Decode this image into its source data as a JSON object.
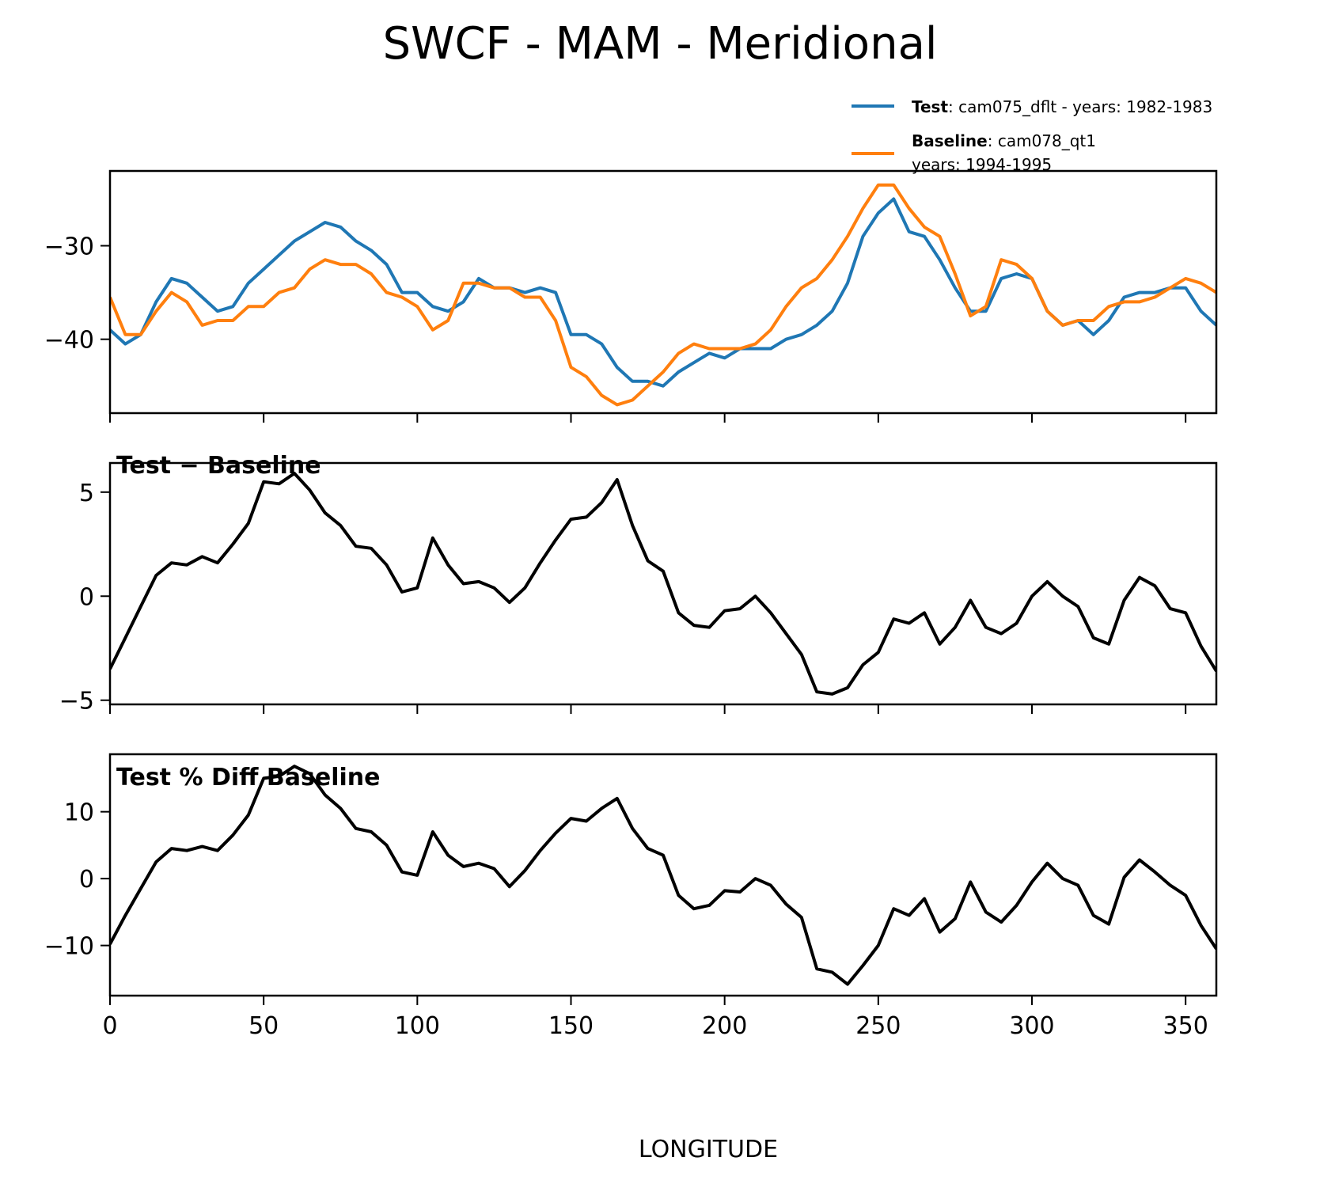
{
  "figure": {
    "title": "SWCF - MAM - Meridional",
    "xlabel": "LONGITUDE"
  },
  "legend": {
    "placement": "upper-right above top panel",
    "entries": [
      {
        "name": "Test",
        "bold": "Test",
        "rest": ": cam075_dflt - years: 1982-1983",
        "line2": "",
        "color": "#1f77b4"
      },
      {
        "name": "Baseline",
        "bold": "Baseline",
        "rest": ": cam078_qt1",
        "line2": "years: 1994-1995",
        "color": "#ff7f0e"
      }
    ]
  },
  "chart_data": [
    {
      "type": "line",
      "panel": "top",
      "title": "",
      "xlabel": "",
      "ylabel": "",
      "xlim": [
        0,
        360
      ],
      "ylim": [
        -47.9,
        -22.0
      ],
      "xticks": [
        0,
        50,
        100,
        150,
        200,
        250,
        300,
        350
      ],
      "xtick_labels_visible": false,
      "yticks": [
        -30,
        -40
      ],
      "ytick_labels": [
        "−30",
        "−40"
      ],
      "grid": false,
      "x": [
        0,
        5,
        10,
        15,
        20,
        25,
        30,
        35,
        40,
        45,
        50,
        55,
        60,
        65,
        70,
        75,
        80,
        85,
        90,
        95,
        100,
        105,
        110,
        115,
        120,
        125,
        130,
        135,
        140,
        145,
        150,
        155,
        160,
        165,
        170,
        175,
        180,
        185,
        190,
        195,
        200,
        205,
        210,
        215,
        220,
        225,
        230,
        235,
        240,
        245,
        250,
        255,
        260,
        265,
        270,
        275,
        280,
        285,
        290,
        295,
        300,
        305,
        310,
        315,
        320,
        325,
        330,
        335,
        340,
        345,
        350,
        355,
        360
      ],
      "series": [
        {
          "name": "Test",
          "color": "#1f77b4",
          "values": [
            -39,
            -40.5,
            -39.5,
            -36,
            -33.5,
            -34,
            -35.5,
            -37,
            -36.5,
            -34,
            -32.5,
            -31,
            -29.5,
            -28.5,
            -27.5,
            -28,
            -29.5,
            -30.5,
            -32,
            -35,
            -35,
            -36.5,
            -37,
            -36,
            -33.5,
            -34.5,
            -34.5,
            -35,
            -34.5,
            -35,
            -39.5,
            -39.5,
            -40.5,
            -43,
            -44.5,
            -44.5,
            -45,
            -43.5,
            -42.5,
            -41.5,
            -42,
            -41,
            -41,
            -41,
            -40,
            -39.5,
            -38.5,
            -37,
            -34,
            -29,
            -26.5,
            -25,
            -28.5,
            -29,
            -31.5,
            -34.5,
            -37,
            -37,
            -33.5,
            -33,
            -33.5,
            -37,
            -38.5,
            -38,
            -39.5,
            -38,
            -35.5,
            -35,
            -35,
            -34.5,
            -34.5,
            -37,
            -38.5
          ]
        },
        {
          "name": "Baseline",
          "color": "#ff7f0e",
          "values": [
            -35.5,
            -39.5,
            -39.5,
            -37,
            -35,
            -36,
            -38.5,
            -38,
            -38,
            -36.5,
            -36.5,
            -35,
            -34.5,
            -32.5,
            -31.5,
            -32,
            -32,
            -33,
            -35,
            -35.5,
            -36.5,
            -39,
            -38,
            -34,
            -34,
            -34.5,
            -34.5,
            -35.5,
            -35.5,
            -38,
            -43,
            -44,
            -46,
            -47,
            -46.5,
            -45,
            -43.5,
            -41.5,
            -40.5,
            -41,
            -41,
            -41,
            -40.5,
            -39,
            -36.5,
            -34.5,
            -33.5,
            -31.5,
            -29,
            -26,
            -23.5,
            -23.5,
            -26,
            -28,
            -29,
            -33,
            -37.5,
            -36.5,
            -31.5,
            -32,
            -33.5,
            -37,
            -38.5,
            -38,
            -38,
            -36.5,
            -36,
            -36,
            -35.5,
            -34.5,
            -33.5,
            -34,
            -35
          ]
        }
      ]
    },
    {
      "type": "line",
      "panel": "middle",
      "title": "Test − Baseline",
      "xlim": [
        0,
        360
      ],
      "ylim": [
        -5.2,
        6.4
      ],
      "xticks": [
        0,
        50,
        100,
        150,
        200,
        250,
        300,
        350
      ],
      "xtick_labels_visible": false,
      "yticks": [
        5,
        0,
        -5
      ],
      "ytick_labels": [
        "5",
        "0",
        "−5"
      ],
      "grid": false,
      "x": [
        0,
        5,
        10,
        15,
        20,
        25,
        30,
        35,
        40,
        45,
        50,
        55,
        60,
        65,
        70,
        75,
        80,
        85,
        90,
        95,
        100,
        105,
        110,
        115,
        120,
        125,
        130,
        135,
        140,
        145,
        150,
        155,
        160,
        165,
        170,
        175,
        180,
        185,
        190,
        195,
        200,
        205,
        210,
        215,
        220,
        225,
        230,
        235,
        240,
        245,
        250,
        255,
        260,
        265,
        270,
        275,
        280,
        285,
        290,
        295,
        300,
        305,
        310,
        315,
        320,
        325,
        330,
        335,
        340,
        345,
        350,
        355,
        360
      ],
      "series": [
        {
          "name": "Test − Baseline",
          "color": "#000000",
          "values": [
            -3.5,
            -2,
            -0.5,
            1,
            1.6,
            1.5,
            1.9,
            1.6,
            2.5,
            3.5,
            5.5,
            5.4,
            5.9,
            5.1,
            4,
            3.4,
            2.4,
            2.3,
            1.5,
            0.2,
            0.4,
            2.8,
            1.5,
            0.6,
            0.7,
            0.4,
            -0.3,
            0.4,
            1.6,
            2.7,
            3.7,
            3.8,
            4.5,
            5.6,
            3.4,
            1.7,
            1.2,
            -0.8,
            -1.4,
            -1.5,
            -0.7,
            -0.6,
            0,
            -0.8,
            -1.8,
            -2.8,
            -4.6,
            -4.7,
            -4.4,
            -3.3,
            -2.7,
            -1.1,
            -1.3,
            -0.8,
            -2.3,
            -1.5,
            -0.2,
            -1.5,
            -1.8,
            -1.3,
            0,
            0.7,
            0,
            -0.5,
            -2,
            -2.3,
            -0.2,
            0.9,
            0.5,
            -0.6,
            -0.8,
            -2.4,
            -3.6
          ]
        }
      ]
    },
    {
      "type": "line",
      "panel": "bottom",
      "title": "Test % Diff Baseline",
      "xlabel": "LONGITUDE",
      "xlim": [
        0,
        360
      ],
      "ylim": [
        -17.5,
        18.6
      ],
      "xticks": [
        0,
        50,
        100,
        150,
        200,
        250,
        300,
        350
      ],
      "xtick_labels": [
        "0",
        "50",
        "100",
        "150",
        "200",
        "250",
        "300",
        "350"
      ],
      "yticks": [
        10,
        0,
        -10
      ],
      "ytick_labels": [
        "10",
        "0",
        "−10"
      ],
      "grid": false,
      "x": [
        0,
        5,
        10,
        15,
        20,
        25,
        30,
        35,
        40,
        45,
        50,
        55,
        60,
        65,
        70,
        75,
        80,
        85,
        90,
        95,
        100,
        105,
        110,
        115,
        120,
        125,
        130,
        135,
        140,
        145,
        150,
        155,
        160,
        165,
        170,
        175,
        180,
        185,
        190,
        195,
        200,
        205,
        210,
        215,
        220,
        225,
        230,
        235,
        240,
        245,
        250,
        255,
        260,
        265,
        270,
        275,
        280,
        285,
        290,
        295,
        300,
        305,
        310,
        315,
        320,
        325,
        330,
        335,
        340,
        345,
        350,
        355,
        360
      ],
      "series": [
        {
          "name": "Test % Diff Baseline",
          "color": "#000000",
          "values": [
            -9.8,
            -5.5,
            -1.5,
            2.5,
            4.5,
            4.2,
            4.8,
            4.2,
            6.5,
            9.5,
            15,
            15.3,
            16.8,
            15.7,
            12.5,
            10.5,
            7.5,
            7,
            5,
            1,
            0.5,
            7,
            3.5,
            1.8,
            2.3,
            1.5,
            -1.2,
            1.2,
            4.2,
            6.8,
            9,
            8.6,
            10.5,
            12,
            7.5,
            4.5,
            3.5,
            -2.5,
            -4.5,
            -4,
            -1.8,
            -2,
            0,
            -1,
            -3.8,
            -5.8,
            -13.5,
            -14,
            -15.8,
            -13,
            -10,
            -4.5,
            -5.5,
            -3,
            -8,
            -6,
            -0.5,
            -5,
            -6.5,
            -4,
            -0.5,
            2.3,
            0,
            -1,
            -5.5,
            -6.8,
            0.2,
            2.8,
            1,
            -1,
            -2.5,
            -7,
            -10.5
          ]
        }
      ]
    }
  ]
}
